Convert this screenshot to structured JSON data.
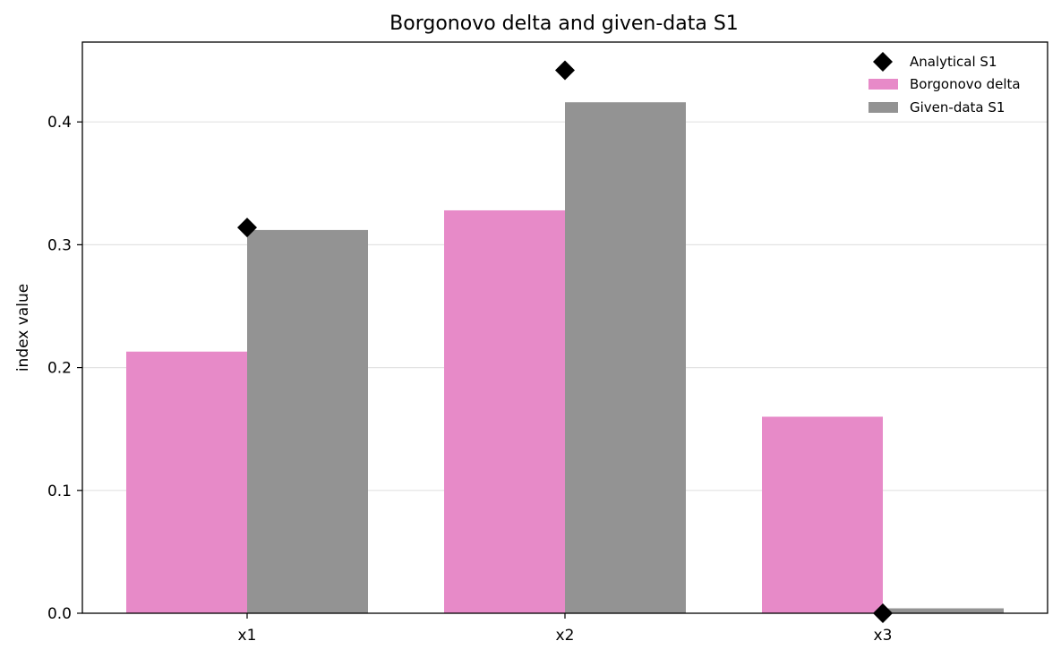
{
  "chart_data": {
    "type": "bar",
    "title": "Borgonovo delta and given-data S1",
    "xlabel": "",
    "ylabel": "index value",
    "categories": [
      "x1",
      "x2",
      "x3"
    ],
    "ylim": [
      0,
      0.465
    ],
    "yticks": [
      0.0,
      0.1,
      0.2,
      0.3,
      0.4
    ],
    "ytick_labels": [
      "0.0",
      "0.1",
      "0.2",
      "0.3",
      "0.4"
    ],
    "grid": "horizontal",
    "legend_position": "top-right",
    "series": [
      {
        "name": "Borgonovo delta",
        "kind": "bar",
        "color": "#e78ac8",
        "values": [
          0.213,
          0.328,
          0.16
        ]
      },
      {
        "name": "Given-data S1",
        "kind": "bar",
        "color": "#939393",
        "values": [
          0.312,
          0.416,
          0.004
        ]
      },
      {
        "name": "Analytical S1",
        "kind": "marker",
        "marker": "diamond",
        "color": "#000000",
        "values": [
          0.314,
          0.442,
          0.0
        ]
      }
    ],
    "legend_order": [
      "Analytical S1",
      "Borgonovo delta",
      "Given-data S1"
    ]
  }
}
